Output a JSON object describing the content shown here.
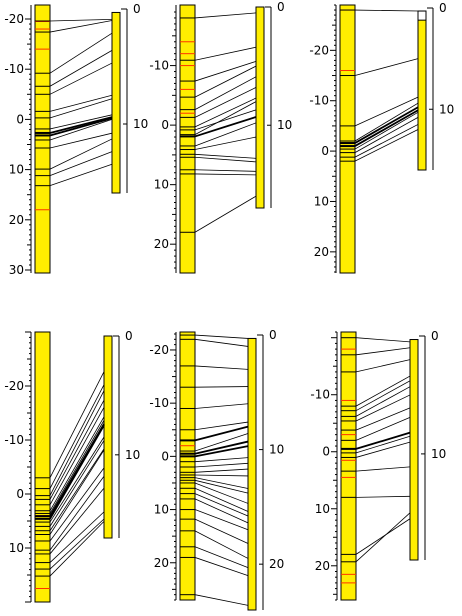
{
  "panels": [
    {
      "id": "panel-1",
      "left_scale": {
        "min": -20,
        "max": 30,
        "labels": [
          "-20",
          "-10",
          "0",
          "10",
          "20",
          "30"
        ]
      },
      "right_scale": {
        "min": 0,
        "max": 16,
        "labels": [
          "0",
          "10"
        ]
      },
      "right_column": {
        "top": 0.3,
        "bottom": 16
      },
      "red_marks": [
        -19.5,
        -18,
        -14,
        18
      ],
      "links": [
        [
          -19.6,
          0.9
        ],
        [
          -17.4,
          1.0
        ],
        [
          -9.2,
          2.1
        ],
        [
          -6.6,
          3.6
        ],
        [
          -5.0,
          4.7
        ],
        [
          -1.6,
          7.5
        ],
        [
          -0.3,
          7.8
        ],
        [
          1.9,
          9.2
        ],
        [
          2.7,
          9.4
        ],
        [
          3.2,
          9.5
        ],
        [
          4.1,
          9.6
        ],
        [
          5.7,
          10.8
        ],
        [
          9.9,
          11.3
        ],
        [
          11.2,
          12.4
        ],
        [
          13.2,
          13.5
        ]
      ],
      "bold_links": [
        [
          2.7,
          9.4
        ],
        [
          3.2,
          9.5
        ]
      ]
    },
    {
      "id": "panel-2",
      "left_scale": {
        "min": -19,
        "max": 24,
        "labels": [
          "-10",
          "0",
          "10",
          "20"
        ]
      },
      "right_scale": {
        "min": 0,
        "max": 17,
        "labels": [
          "0",
          "10"
        ]
      },
      "right_column": {
        "top": 0,
        "bottom": 17
      },
      "red_marks": [
        -14,
        -12,
        -10,
        -6,
        -2
      ],
      "links": [
        [
          -18.0,
          0.5
        ],
        [
          -10.9,
          3.4
        ],
        [
          -7.4,
          4.6
        ],
        [
          -4.7,
          5.0
        ],
        [
          -2.6,
          5.9
        ],
        [
          -1.3,
          6.8
        ],
        [
          0.3,
          7.7
        ],
        [
          0.8,
          8.7
        ],
        [
          1.6,
          8.0
        ],
        [
          1.9,
          9.3
        ],
        [
          3.5,
          9.8
        ],
        [
          4.1,
          11.0
        ],
        [
          4.9,
          12.8
        ],
        [
          5.4,
          13.1
        ],
        [
          7.5,
          13.9
        ],
        [
          8.2,
          14.2
        ],
        [
          18.0,
          16.0
        ]
      ],
      "bold_links": [
        [
          1.9,
          9.3
        ]
      ]
    },
    {
      "id": "panel-3",
      "left_scale": {
        "min": -29,
        "max": 24,
        "labels": [
          "-20",
          "-10",
          "0",
          "10",
          "20"
        ]
      },
      "right_scale": {
        "min": 0,
        "max": 16,
        "labels": [
          "0",
          "10"
        ]
      },
      "right_column": {
        "top": 0.3,
        "bottom": 16
      },
      "top_box": {
        "top": 0.3,
        "bottom": 1.2
      },
      "red_marks": [
        -28,
        -16
      ],
      "links": [
        [
          -28.0,
          0.3
        ],
        [
          -15.0,
          5.0
        ],
        [
          -5.0,
          8.8
        ],
        [
          -2.0,
          9.4
        ],
        [
          -1.6,
          9.8
        ],
        [
          -1.0,
          10.1
        ],
        [
          -0.4,
          10.3
        ],
        [
          0.3,
          10.8
        ],
        [
          1.2,
          11.5
        ],
        [
          2.0,
          12.0
        ]
      ],
      "bold_links": [
        [
          -1.6,
          9.8
        ],
        [
          -1.0,
          10.1
        ]
      ]
    },
    {
      "id": "panel-4",
      "left_scale": {
        "min": -30,
        "max": 20,
        "labels": [
          "-20",
          "-10",
          "0",
          "10"
        ]
      },
      "right_scale": {
        "min": 0,
        "max": 17,
        "labels": [
          "0",
          "10"
        ]
      },
      "right_column": {
        "top": 0,
        "bottom": 17
      },
      "red_marks": [
        4,
        17.5
      ],
      "links": [
        [
          -3.0,
          3.0
        ],
        [
          -1.0,
          4.1
        ],
        [
          0.3,
          4.6
        ],
        [
          1.0,
          5.4
        ],
        [
          2.0,
          6.0
        ],
        [
          3.1,
          6.8
        ],
        [
          3.6,
          7.1
        ],
        [
          4.1,
          7.4
        ],
        [
          4.6,
          7.5
        ],
        [
          5.2,
          8.5
        ],
        [
          6.0,
          8.8
        ],
        [
          6.8,
          9.5
        ],
        [
          7.5,
          9.6
        ],
        [
          8.7,
          11.1
        ],
        [
          10.4,
          11.8
        ],
        [
          11.1,
          12.8
        ],
        [
          12.7,
          14.8
        ],
        [
          13.9,
          15.4
        ],
        [
          15.2,
          15.6
        ]
      ],
      "bold_links": [
        [
          4.1,
          7.4
        ],
        [
          4.6,
          7.5
        ]
      ]
    },
    {
      "id": "panel-5",
      "left_scale": {
        "min": -23,
        "max": 27,
        "labels": [
          "-20",
          "-10",
          "0",
          "10",
          "20"
        ]
      },
      "right_scale": {
        "min": 0,
        "max": 24,
        "labels": [
          "0",
          "10",
          "20"
        ]
      },
      "right_column": {
        "top": 0.3,
        "bottom": 24
      },
      "red_marks": [
        -2,
        3.5
      ],
      "links": [
        [
          -22.8,
          0.3
        ],
        [
          -22.0,
          1.0
        ],
        [
          -17.0,
          3.0
        ],
        [
          -13.0,
          4.5
        ],
        [
          -9.0,
          6.0
        ],
        [
          -5.0,
          7.6
        ],
        [
          -3.0,
          8.0
        ],
        [
          -1.0,
          8.6
        ],
        [
          -0.5,
          9.3
        ],
        [
          0.0,
          9.7
        ],
        [
          1.0,
          10.7
        ],
        [
          2.0,
          11.2
        ],
        [
          3.0,
          11.7
        ],
        [
          3.5,
          12.3
        ],
        [
          4.0,
          13.4
        ],
        [
          4.5,
          13.8
        ],
        [
          5.0,
          14.7
        ],
        [
          6.0,
          15.4
        ],
        [
          7.0,
          15.8
        ],
        [
          8.0,
          16.4
        ],
        [
          10.0,
          17.0
        ],
        [
          11.8,
          18.2
        ],
        [
          14.0,
          19.5
        ],
        [
          17.0,
          20.3
        ],
        [
          19.0,
          21.0
        ],
        [
          26.0,
          23.6
        ]
      ],
      "bold_links": [
        [
          -0.5,
          9.3
        ],
        [
          0.0,
          9.7
        ],
        [
          -3.0,
          8.0
        ]
      ]
    },
    {
      "id": "panel-6",
      "left_scale": {
        "min": -21,
        "max": 26,
        "labels": [
          "-10",
          "0",
          "10",
          "20"
        ]
      },
      "right_scale": {
        "min": 0,
        "max": 19,
        "labels": [
          "0",
          "10"
        ]
      },
      "right_column": {
        "top": 0.3,
        "bottom": 19
      },
      "red_marks": [
        -18,
        -9,
        -3,
        1.5,
        4.5,
        21.5,
        23
      ],
      "links": [
        [
          -20.0,
          0.5
        ],
        [
          -17.0,
          1.0
        ],
        [
          -14.0,
          2.0
        ],
        [
          -8.0,
          3.4
        ],
        [
          -7.2,
          3.8
        ],
        [
          -6.2,
          4.3
        ],
        [
          -5.4,
          5.0
        ],
        [
          -3.8,
          6.1
        ],
        [
          -2.0,
          6.9
        ],
        [
          -0.5,
          8.2
        ],
        [
          0.2,
          8.5
        ],
        [
          1.0,
          9.0
        ],
        [
          3.4,
          11.1
        ],
        [
          8.0,
          13.6
        ],
        [
          18.0,
          15.5
        ],
        [
          19.3,
          15.0
        ]
      ],
      "bold_links": [
        [
          -0.5,
          8.2
        ]
      ]
    }
  ]
}
